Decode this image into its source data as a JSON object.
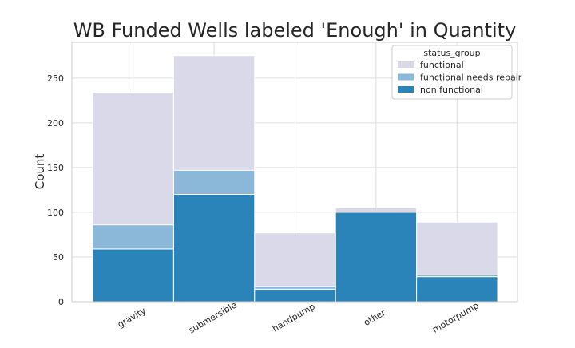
{
  "chart_data": {
    "type": "bar",
    "stacked": true,
    "title": "WB Funded Wells labeled 'Enough' in Quantity",
    "xlabel": "",
    "ylabel": "Count",
    "categories": [
      "gravity",
      "submersible",
      "handpump",
      "other",
      "motorpump"
    ],
    "ylim": [
      0,
      290
    ],
    "yticks": [
      0,
      50,
      100,
      150,
      200,
      250
    ],
    "grid": true,
    "legend": {
      "title": "status_group",
      "placement": "top-right",
      "entries": [
        "functional",
        "functional needs repair",
        "non functional"
      ]
    },
    "series": [
      {
        "name": "non functional",
        "values": [
          59,
          120,
          14,
          100,
          28
        ],
        "color": "#2a83b9"
      },
      {
        "name": "functional needs repair",
        "values": [
          27,
          27,
          3,
          0,
          2
        ],
        "color": "#8bb7d8"
      },
      {
        "name": "functional",
        "values": [
          148,
          128,
          60,
          5,
          59
        ],
        "color": "#d9d9ea"
      }
    ]
  }
}
